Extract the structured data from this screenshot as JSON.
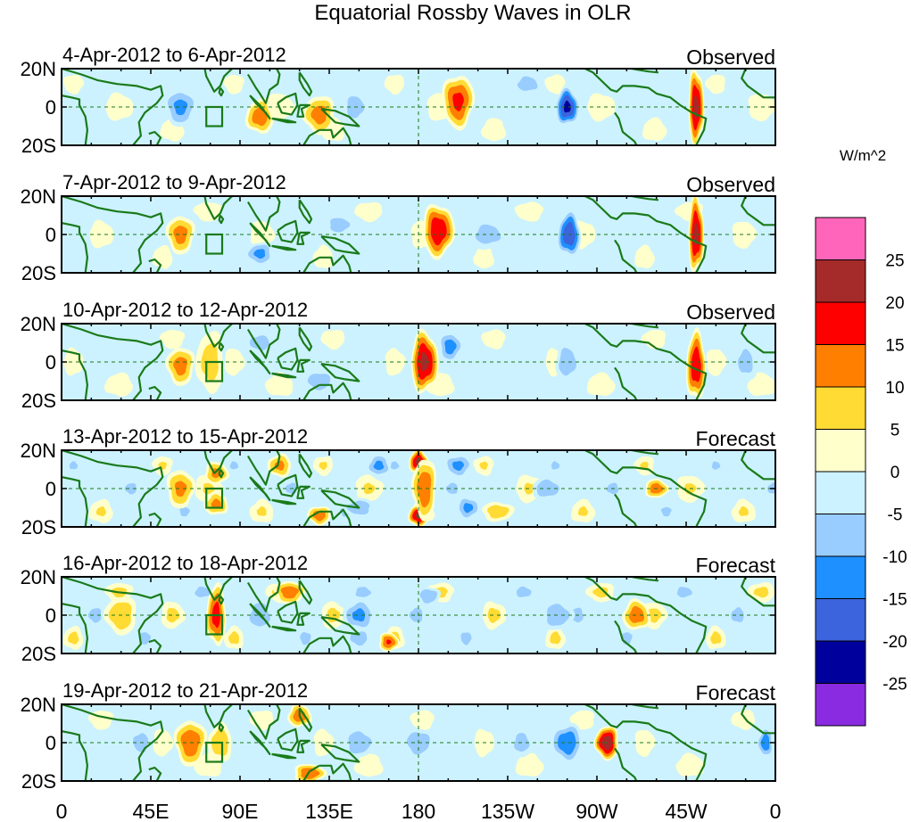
{
  "chart_data": {
    "type": "heatmap",
    "title": "Equatorial Rossby Waves in OLR",
    "x_tick_labels": [
      "0",
      "45E",
      "90E",
      "135E",
      "180",
      "135W",
      "90W",
      "45W",
      "0"
    ],
    "y_tick_labels": [
      "20N",
      "0",
      "20S"
    ],
    "x_range_deg_east": [
      0,
      360
    ],
    "y_range_deg_lat": [
      -20,
      20
    ],
    "colorbar": {
      "unit": "W/m^2",
      "levels": [
        25,
        20,
        15,
        10,
        5,
        0,
        -5,
        -10,
        -15,
        -20,
        -25
      ],
      "colors": [
        "#ff66bb",
        "#a52a2a",
        "#ff0000",
        "#ff7f00",
        "#ffdb33",
        "#ffffcc",
        "#ccf2ff",
        "#99ccff",
        "#1e90ff",
        "#3c64dc",
        "#00009c",
        "#8a2be2"
      ]
    },
    "panels": [
      {
        "period": "4-Apr-2012 to 6-Apr-2012",
        "status": "Observed",
        "features": [
          [
            200,
            3,
            17,
            8,
            14
          ],
          [
            320,
            0,
            22,
            4,
            20
          ],
          [
            255,
            0,
            -22,
            6,
            10
          ],
          [
            100,
            -5,
            14,
            7,
            9
          ],
          [
            130,
            -4,
            13,
            8,
            10
          ],
          [
            60,
            0,
            -12,
            8,
            10
          ],
          [
            148,
            0,
            -10,
            6,
            8
          ],
          [
            235,
            12,
            -8,
            8,
            6
          ]
        ]
      },
      {
        "period": "7-Apr-2012 to 9-Apr-2012",
        "status": "Observed",
        "features": [
          [
            190,
            2,
            20,
            8,
            14
          ],
          [
            320,
            0,
            22,
            4,
            20
          ],
          [
            256,
            0,
            -20,
            6,
            12
          ],
          [
            100,
            -10,
            -12,
            7,
            6
          ],
          [
            60,
            0,
            13,
            7,
            10
          ],
          [
            140,
            5,
            -8,
            8,
            6
          ],
          [
            215,
            0,
            -8,
            10,
            8
          ]
        ]
      },
      {
        "period": "10-Apr-2012 to 12-Apr-2012",
        "status": "Observed",
        "features": [
          [
            183,
            0,
            22,
            7,
            16
          ],
          [
            320,
            -2,
            20,
            5,
            18
          ],
          [
            75,
            0,
            8,
            7,
            16
          ],
          [
            60,
            -2,
            13,
            7,
            10
          ],
          [
            196,
            8,
            -13,
            6,
            8
          ],
          [
            255,
            0,
            -10,
            6,
            10
          ],
          [
            345,
            0,
            -8,
            6,
            10
          ],
          [
            100,
            10,
            -8,
            8,
            6
          ],
          [
            130,
            -10,
            -10,
            8,
            6
          ]
        ]
      },
      {
        "period": "13-Apr-2012 to 15-Apr-2012",
        "status": "Forecast",
        "features": [
          [
            180,
            14,
            22,
            5,
            6
          ],
          [
            180,
            -14,
            22,
            5,
            6
          ],
          [
            183,
            0,
            15,
            6,
            16
          ],
          [
            60,
            0,
            12,
            7,
            10
          ],
          [
            78,
            8,
            12,
            6,
            6
          ],
          [
            78,
            -8,
            12,
            6,
            6
          ],
          [
            110,
            12,
            12,
            6,
            6
          ],
          [
            130,
            -14,
            14,
            6,
            5
          ],
          [
            220,
            -12,
            9,
            8,
            5
          ],
          [
            300,
            0,
            14,
            6,
            5
          ],
          [
            160,
            12,
            -12,
            6,
            6
          ],
          [
            150,
            -10,
            -10,
            8,
            5
          ],
          [
            200,
            12,
            -12,
            7,
            6
          ],
          [
            205,
            -10,
            -12,
            6,
            6
          ],
          [
            245,
            0,
            -10,
            8,
            6
          ]
        ]
      },
      {
        "period": "16-Apr-2012 to 18-Apr-2012",
        "status": "Forecast",
        "features": [
          [
            78,
            0,
            18,
            5,
            16
          ],
          [
            30,
            0,
            10,
            8,
            10
          ],
          [
            115,
            12,
            14,
            8,
            6
          ],
          [
            165,
            -14,
            16,
            5,
            5
          ],
          [
            290,
            0,
            14,
            7,
            8
          ],
          [
            150,
            0,
            -12,
            8,
            8
          ],
          [
            150,
            -12,
            -10,
            6,
            5
          ],
          [
            185,
            10,
            -10,
            6,
            5
          ],
          [
            250,
            0,
            -10,
            8,
            8
          ],
          [
            100,
            0,
            -8,
            8,
            10
          ]
        ]
      },
      {
        "period": "19-Apr-2012 to 21-Apr-2012",
        "status": "Forecast",
        "features": [
          [
            275,
            0,
            24,
            6,
            9
          ],
          [
            65,
            0,
            15,
            8,
            12
          ],
          [
            125,
            -16,
            15,
            8,
            5
          ],
          [
            120,
            14,
            14,
            6,
            6
          ],
          [
            80,
            0,
            10,
            6,
            10
          ],
          [
            255,
            0,
            -15,
            8,
            10
          ],
          [
            180,
            0,
            -10,
            8,
            8
          ],
          [
            150,
            0,
            -10,
            8,
            8
          ],
          [
            232,
            0,
            -8,
            6,
            8
          ],
          [
            355,
            0,
            -14,
            4,
            8
          ],
          [
            40,
            0,
            -8,
            6,
            8
          ]
        ]
      }
    ]
  }
}
